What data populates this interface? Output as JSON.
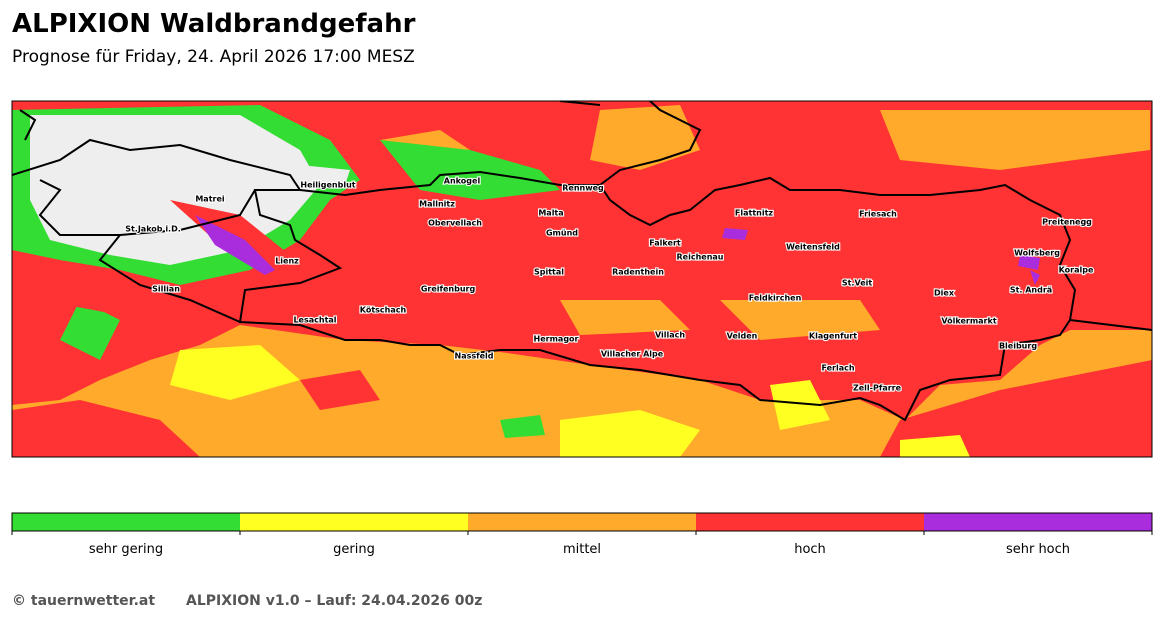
{
  "header": {
    "title": "ALPIXION Waldbrandgefahr",
    "subtitle": "Prognose für Friday, 24. April 2026 17:00 MESZ"
  },
  "places": [
    "Heiligenblut",
    "Ankogel",
    "Rennweg",
    "Matrei",
    "Mallnitz",
    "Malta",
    "Flattnitz",
    "Friesach",
    "Preitenegg",
    "Obervellach",
    "St.Jakob i.D.",
    "Gmünd",
    "Falkert",
    "Weitensfeld",
    "Wolfsberg",
    "Reichenau",
    "Lienz",
    "Spittal",
    "Radenthein",
    "Koralpe",
    "St.Veit",
    "Sillian",
    "Greifenburg",
    "Diex",
    "St. Andrä",
    "Feldkirchen",
    "Kötschach",
    "Lesachtal",
    "Völkermarkt",
    "Villach",
    "Hermagor",
    "Velden",
    "Klagenfurt",
    "Bleiburg",
    "Nassfeld",
    "Villacher Alpe",
    "Ferlach",
    "Zell-Pfarre"
  ],
  "legend": [
    {
      "label": "sehr gering",
      "color": "#33dd33"
    },
    {
      "label": "gering",
      "color": "#ffff22"
    },
    {
      "label": "mittel",
      "color": "#ffaa2a"
    },
    {
      "label": "hoch",
      "color": "#ff3333"
    },
    {
      "label": "sehr hoch",
      "color": "#aa2ddd"
    }
  ],
  "footer": {
    "copyright": "© tauernwetter.at",
    "run": "ALPIXION v1.0 – Lauf: 24.04.2026 00z"
  }
}
